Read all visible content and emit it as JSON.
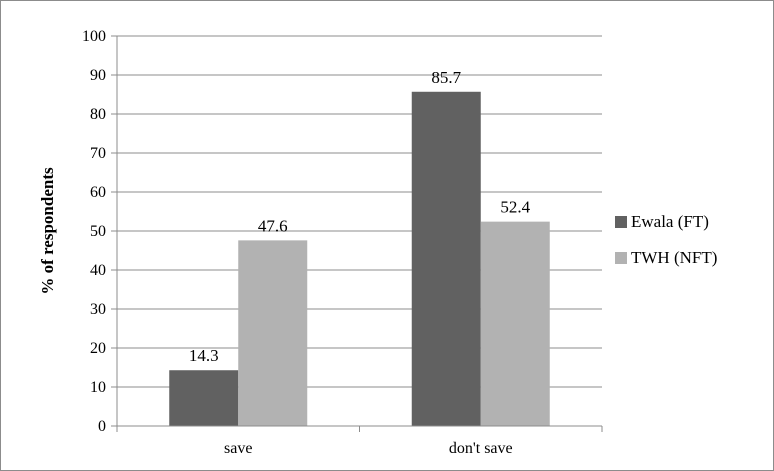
{
  "chart_data": {
    "type": "bar",
    "categories": [
      "save",
      "don't save"
    ],
    "series": [
      {
        "name": "Ewala (FT)",
        "values": [
          14.3,
          85.7
        ],
        "color": "#616161"
      },
      {
        "name": "TWH (NFT)",
        "values": [
          47.6,
          52.4
        ],
        "color": "#b2b2b2"
      }
    ],
    "data_labels": [
      [
        "14.3",
        "85.7"
      ],
      [
        "47.6",
        "52.4"
      ]
    ],
    "title": "",
    "xlabel": "",
    "ylabel": "% of respondents",
    "ylim": [
      0,
      100
    ],
    "yticks": [
      0,
      10,
      20,
      30,
      40,
      50,
      60,
      70,
      80,
      90,
      100
    ],
    "grid": true,
    "legend_position": "right",
    "colors": {
      "grid": "#8c8c8c",
      "axis": "#8c8c8c",
      "text": "#000000"
    }
  }
}
